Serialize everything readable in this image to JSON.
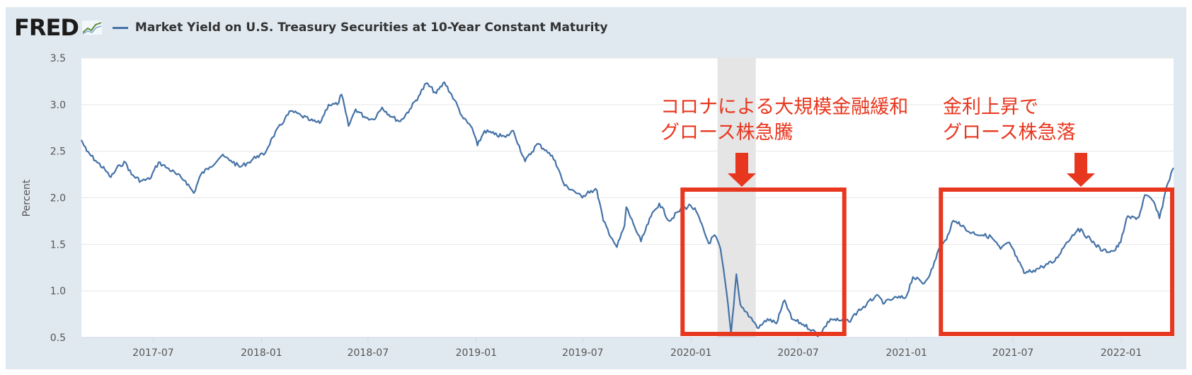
{
  "logo": {
    "text": "FRED"
  },
  "legend": {
    "label": "Market Yield on U.S. Treasury Securities at 10-Year Constant Maturity",
    "color": "#4572a7"
  },
  "colors": {
    "accent": "#e8371f",
    "recession": "#e5e5e5"
  },
  "annotations": [
    {
      "line1": "コロナによる大規模金融緩和",
      "line2": "グロース株急騰"
    },
    {
      "line1": "金利上昇で",
      "line2": "グロース株急落"
    }
  ],
  "chart_data": {
    "type": "line",
    "title": "",
    "xlabel": "",
    "ylabel": "Percent",
    "ylim": [
      0.5,
      3.5
    ],
    "yticks": [
      "3.5",
      "3.0",
      "2.5",
      "2.0",
      "1.5",
      "1.0",
      "0.5"
    ],
    "xticks": [
      "2017-07",
      "2018-01",
      "2018-07",
      "2019-01",
      "2019-07",
      "2020-01",
      "2020-07",
      "2021-01",
      "2021-07",
      "2022-01"
    ],
    "xrange": [
      "2017-03-01",
      "2022-03-31"
    ],
    "grid": true,
    "recession": [
      "2020-02-15",
      "2020-04-20"
    ],
    "highlight_boxes": [
      {
        "start": "2020-01-01",
        "end": "2020-09-15"
      },
      {
        "start": "2021-03-15",
        "end": "2022-03-31"
      }
    ],
    "series": [
      {
        "name": "Market Yield on U.S. Treasury Securities at 10-Year Constant Maturity",
        "points": [
          [
            "2017-03-01",
            2.62
          ],
          [
            "2017-03-10",
            2.5
          ],
          [
            "2017-03-25",
            2.4
          ],
          [
            "2017-04-10",
            2.3
          ],
          [
            "2017-04-20",
            2.22
          ],
          [
            "2017-05-05",
            2.35
          ],
          [
            "2017-05-15",
            2.38
          ],
          [
            "2017-05-25",
            2.25
          ],
          [
            "2017-06-10",
            2.18
          ],
          [
            "2017-06-25",
            2.2
          ],
          [
            "2017-07-10",
            2.38
          ],
          [
            "2017-07-25",
            2.32
          ],
          [
            "2017-08-10",
            2.25
          ],
          [
            "2017-08-25",
            2.18
          ],
          [
            "2017-09-08",
            2.05
          ],
          [
            "2017-09-20",
            2.25
          ],
          [
            "2017-10-05",
            2.33
          ],
          [
            "2017-10-25",
            2.45
          ],
          [
            "2017-11-10",
            2.4
          ],
          [
            "2017-11-25",
            2.33
          ],
          [
            "2017-12-10",
            2.38
          ],
          [
            "2017-12-25",
            2.45
          ],
          [
            "2018-01-05",
            2.46
          ],
          [
            "2018-01-20",
            2.65
          ],
          [
            "2018-02-10",
            2.85
          ],
          [
            "2018-02-20",
            2.93
          ],
          [
            "2018-03-10",
            2.88
          ],
          [
            "2018-03-25",
            2.83
          ],
          [
            "2018-04-10",
            2.8
          ],
          [
            "2018-04-25",
            3.0
          ],
          [
            "2018-05-10",
            3.0
          ],
          [
            "2018-05-17",
            3.11
          ],
          [
            "2018-05-29",
            2.77
          ],
          [
            "2018-06-10",
            2.95
          ],
          [
            "2018-06-25",
            2.87
          ],
          [
            "2018-07-10",
            2.84
          ],
          [
            "2018-07-25",
            2.97
          ],
          [
            "2018-08-10",
            2.87
          ],
          [
            "2018-08-25",
            2.82
          ],
          [
            "2018-09-10",
            2.95
          ],
          [
            "2018-09-25",
            3.09
          ],
          [
            "2018-10-08",
            3.23
          ],
          [
            "2018-10-25",
            3.12
          ],
          [
            "2018-11-08",
            3.24
          ],
          [
            "2018-11-25",
            3.05
          ],
          [
            "2018-12-10",
            2.85
          ],
          [
            "2018-12-25",
            2.75
          ],
          [
            "2019-01-03",
            2.56
          ],
          [
            "2019-01-15",
            2.72
          ],
          [
            "2019-02-01",
            2.68
          ],
          [
            "2019-02-20",
            2.65
          ],
          [
            "2019-03-05",
            2.72
          ],
          [
            "2019-03-25",
            2.39
          ],
          [
            "2019-04-15",
            2.58
          ],
          [
            "2019-04-30",
            2.51
          ],
          [
            "2019-05-15",
            2.4
          ],
          [
            "2019-05-31",
            2.13
          ],
          [
            "2019-06-15",
            2.08
          ],
          [
            "2019-06-30",
            2.0
          ],
          [
            "2019-07-10",
            2.07
          ],
          [
            "2019-07-25",
            2.08
          ],
          [
            "2019-08-05",
            1.75
          ],
          [
            "2019-08-20",
            1.56
          ],
          [
            "2019-08-28",
            1.47
          ],
          [
            "2019-09-10",
            1.7
          ],
          [
            "2019-09-13",
            1.9
          ],
          [
            "2019-09-25",
            1.72
          ],
          [
            "2019-10-08",
            1.53
          ],
          [
            "2019-10-25",
            1.8
          ],
          [
            "2019-11-08",
            1.94
          ],
          [
            "2019-11-25",
            1.75
          ],
          [
            "2019-12-10",
            1.85
          ],
          [
            "2019-12-31",
            1.92
          ],
          [
            "2020-01-10",
            1.85
          ],
          [
            "2020-01-31",
            1.51
          ],
          [
            "2020-02-10",
            1.6
          ],
          [
            "2020-02-20",
            1.45
          ],
          [
            "2020-03-01",
            1.0
          ],
          [
            "2020-03-09",
            0.54
          ],
          [
            "2020-03-18",
            1.18
          ],
          [
            "2020-03-25",
            0.85
          ],
          [
            "2020-04-10",
            0.72
          ],
          [
            "2020-04-25",
            0.6
          ],
          [
            "2020-05-10",
            0.7
          ],
          [
            "2020-05-25",
            0.65
          ],
          [
            "2020-06-08",
            0.9
          ],
          [
            "2020-06-20",
            0.7
          ],
          [
            "2020-07-10",
            0.64
          ],
          [
            "2020-07-25",
            0.58
          ],
          [
            "2020-08-05",
            0.52
          ],
          [
            "2020-08-25",
            0.7
          ],
          [
            "2020-09-10",
            0.68
          ],
          [
            "2020-09-25",
            0.67
          ],
          [
            "2020-10-10",
            0.78
          ],
          [
            "2020-10-25",
            0.85
          ],
          [
            "2020-11-10",
            0.95
          ],
          [
            "2020-11-25",
            0.87
          ],
          [
            "2020-12-10",
            0.92
          ],
          [
            "2020-12-31",
            0.93
          ],
          [
            "2021-01-12",
            1.15
          ],
          [
            "2021-01-31",
            1.08
          ],
          [
            "2021-02-15",
            1.25
          ],
          [
            "2021-02-25",
            1.45
          ],
          [
            "2021-03-10",
            1.55
          ],
          [
            "2021-03-19",
            1.73
          ],
          [
            "2021-03-31",
            1.74
          ],
          [
            "2021-04-15",
            1.64
          ],
          [
            "2021-05-10",
            1.6
          ],
          [
            "2021-05-25",
            1.58
          ],
          [
            "2021-06-10",
            1.45
          ],
          [
            "2021-06-25",
            1.52
          ],
          [
            "2021-07-10",
            1.32
          ],
          [
            "2021-07-20",
            1.19
          ],
          [
            "2021-08-05",
            1.22
          ],
          [
            "2021-08-20",
            1.26
          ],
          [
            "2021-09-10",
            1.32
          ],
          [
            "2021-09-30",
            1.52
          ],
          [
            "2021-10-20",
            1.67
          ],
          [
            "2021-11-10",
            1.55
          ],
          [
            "2021-11-30",
            1.43
          ],
          [
            "2021-12-20",
            1.43
          ],
          [
            "2021-12-31",
            1.52
          ],
          [
            "2022-01-10",
            1.78
          ],
          [
            "2022-01-31",
            1.79
          ],
          [
            "2022-02-10",
            2.03
          ],
          [
            "2022-02-25",
            1.96
          ],
          [
            "2022-03-07",
            1.78
          ],
          [
            "2022-03-20",
            2.14
          ],
          [
            "2022-03-31",
            2.32
          ]
        ]
      }
    ]
  }
}
